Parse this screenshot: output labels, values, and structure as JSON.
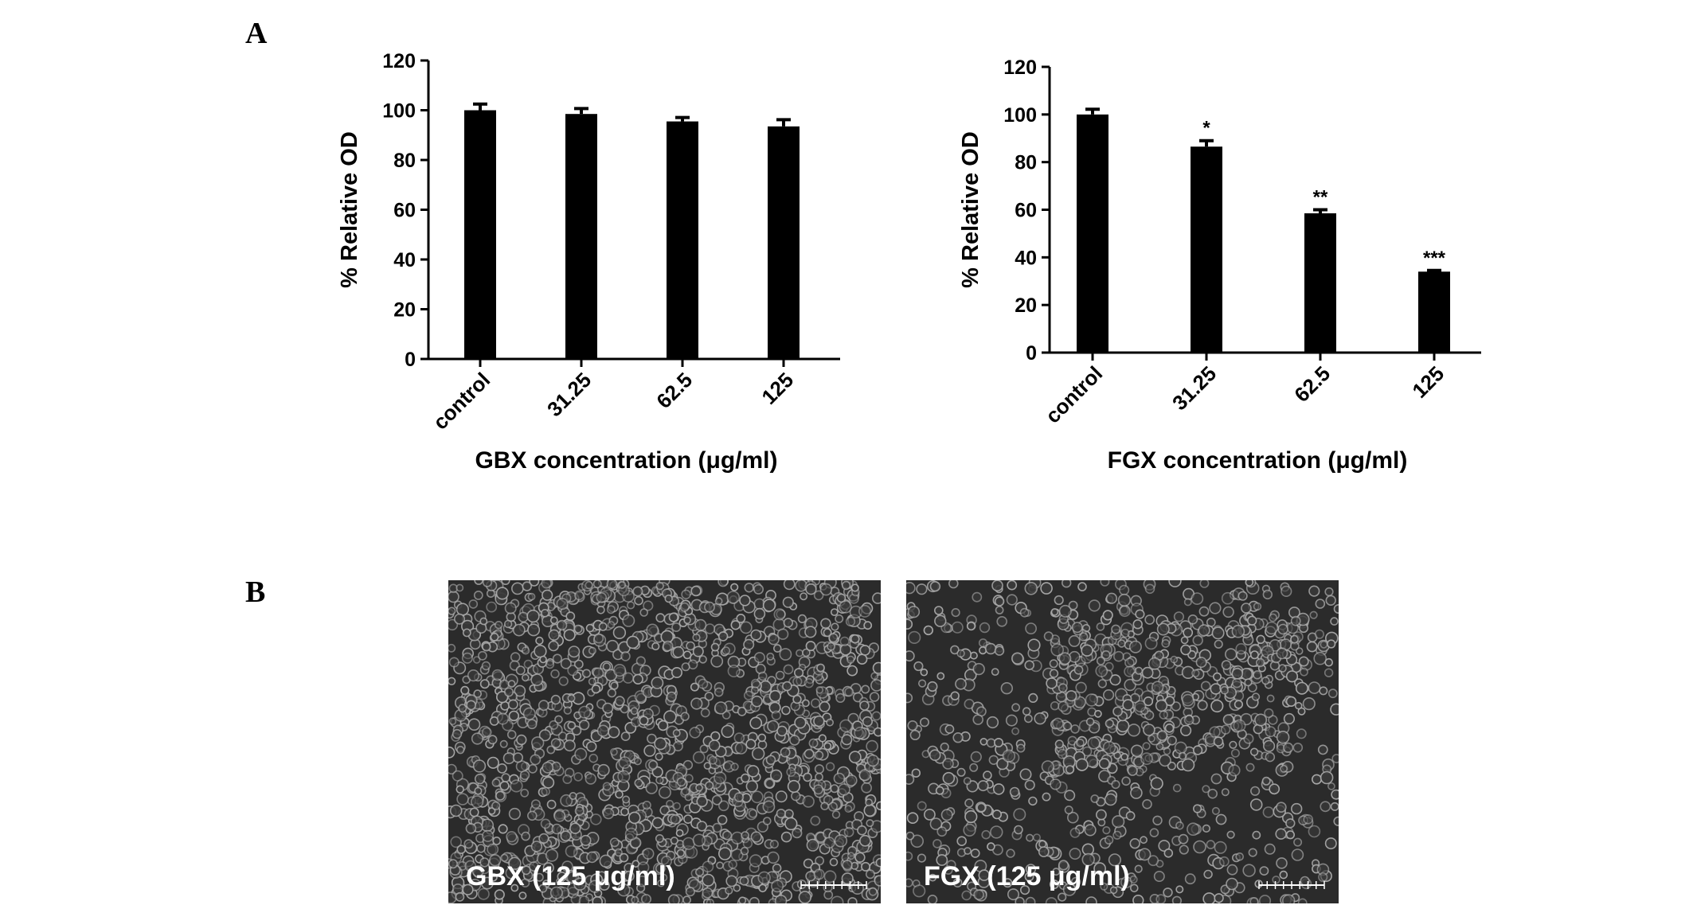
{
  "figure": {
    "panel_a_label": "A",
    "panel_b_label": "B"
  },
  "chart_data": [
    {
      "type": "bar",
      "ylabel": "% Relative OD",
      "xlabel": "GBX concentration (μg/ml)",
      "categories": [
        "control",
        "31.25",
        "62.5",
        "125"
      ],
      "values": [
        100,
        98.5,
        95.5,
        93.5
      ],
      "errors": [
        2.5,
        2.2,
        1.6,
        2.7
      ],
      "significance": [
        "",
        "",
        "",
        ""
      ],
      "ylim": [
        0,
        120
      ],
      "yticks": [
        0,
        20,
        40,
        60,
        80,
        100,
        120
      ],
      "bar_color": "#000000"
    },
    {
      "type": "bar",
      "ylabel": "% Relative OD",
      "xlabel": "FGX concentration (μg/ml)",
      "categories": [
        "control",
        "31.25",
        "62.5",
        "125"
      ],
      "values": [
        100,
        86.5,
        58.5,
        34
      ],
      "errors": [
        2.2,
        2.5,
        1.5,
        0.5
      ],
      "significance": [
        "",
        "*",
        "**",
        "***"
      ],
      "ylim": [
        0,
        120
      ],
      "yticks": [
        0,
        20,
        40,
        60,
        80,
        100,
        120
      ],
      "bar_color": "#000000"
    }
  ],
  "micrographs": [
    {
      "caption": "GBX (125 μg/ml)",
      "cell_color": "#a9a9a9",
      "background_color": "#2b2b2b"
    },
    {
      "caption": "FGX (125 μg/ml)",
      "cell_color": "#a9a9a9",
      "background_color": "#2b2b2b"
    }
  ]
}
